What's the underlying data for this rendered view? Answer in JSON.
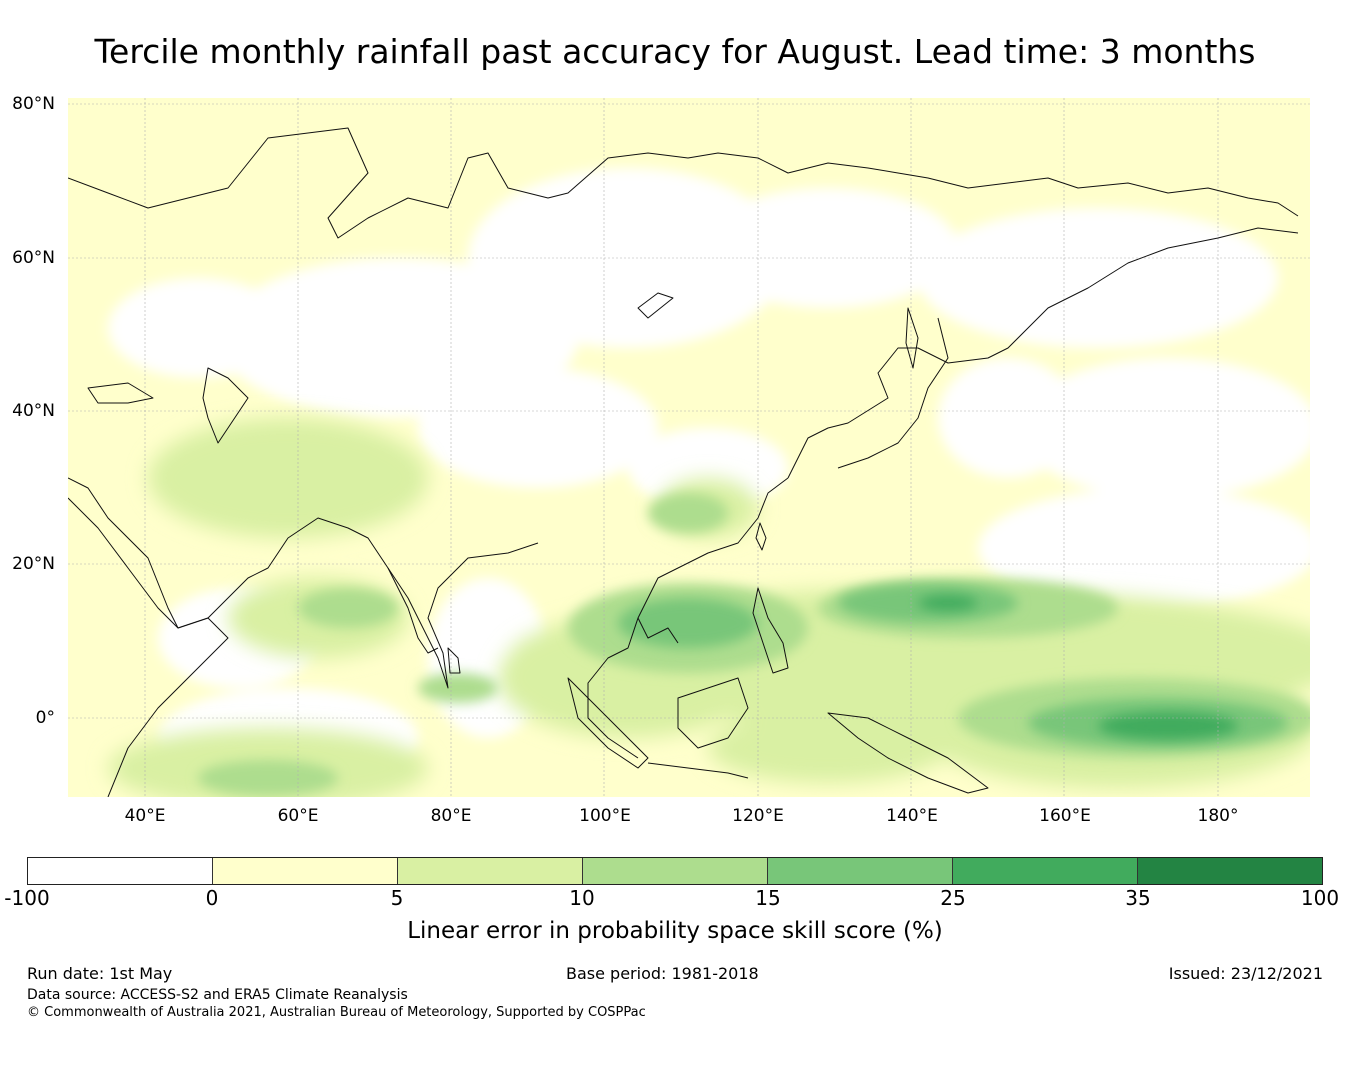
{
  "title": "Tercile monthly rainfall past accuracy for August. Lead time: 3 months",
  "map": {
    "lat_labels": [
      "80°N",
      "60°N",
      "40°N",
      "20°N",
      "0°"
    ],
    "lon_labels": [
      "40°E",
      "60°E",
      "80°E",
      "100°E",
      "120°E",
      "140°E",
      "160°E",
      "180°"
    ]
  },
  "colorbar": {
    "label": "Linear error in probability space skill score (%)",
    "ticks": [
      "-100",
      "0",
      "5",
      "10",
      "15",
      "25",
      "35",
      "100"
    ],
    "colors": [
      "#ffffff",
      "#ffffcc",
      "#d9f0a3",
      "#addd8e",
      "#78c679",
      "#41ab5d",
      "#238443"
    ]
  },
  "footer": {
    "run_date": "Run date: 1st May",
    "base_period": "Base period: 1981-2018",
    "issued": "Issued: 23/12/2021",
    "data_source": "Data source: ACCESS-S2 and ERA5 Climate Reanalysis",
    "copyright": "© Commonwealth of Australia 2021, Australian Bureau of Meteorology, Supported by COSPPac"
  }
}
